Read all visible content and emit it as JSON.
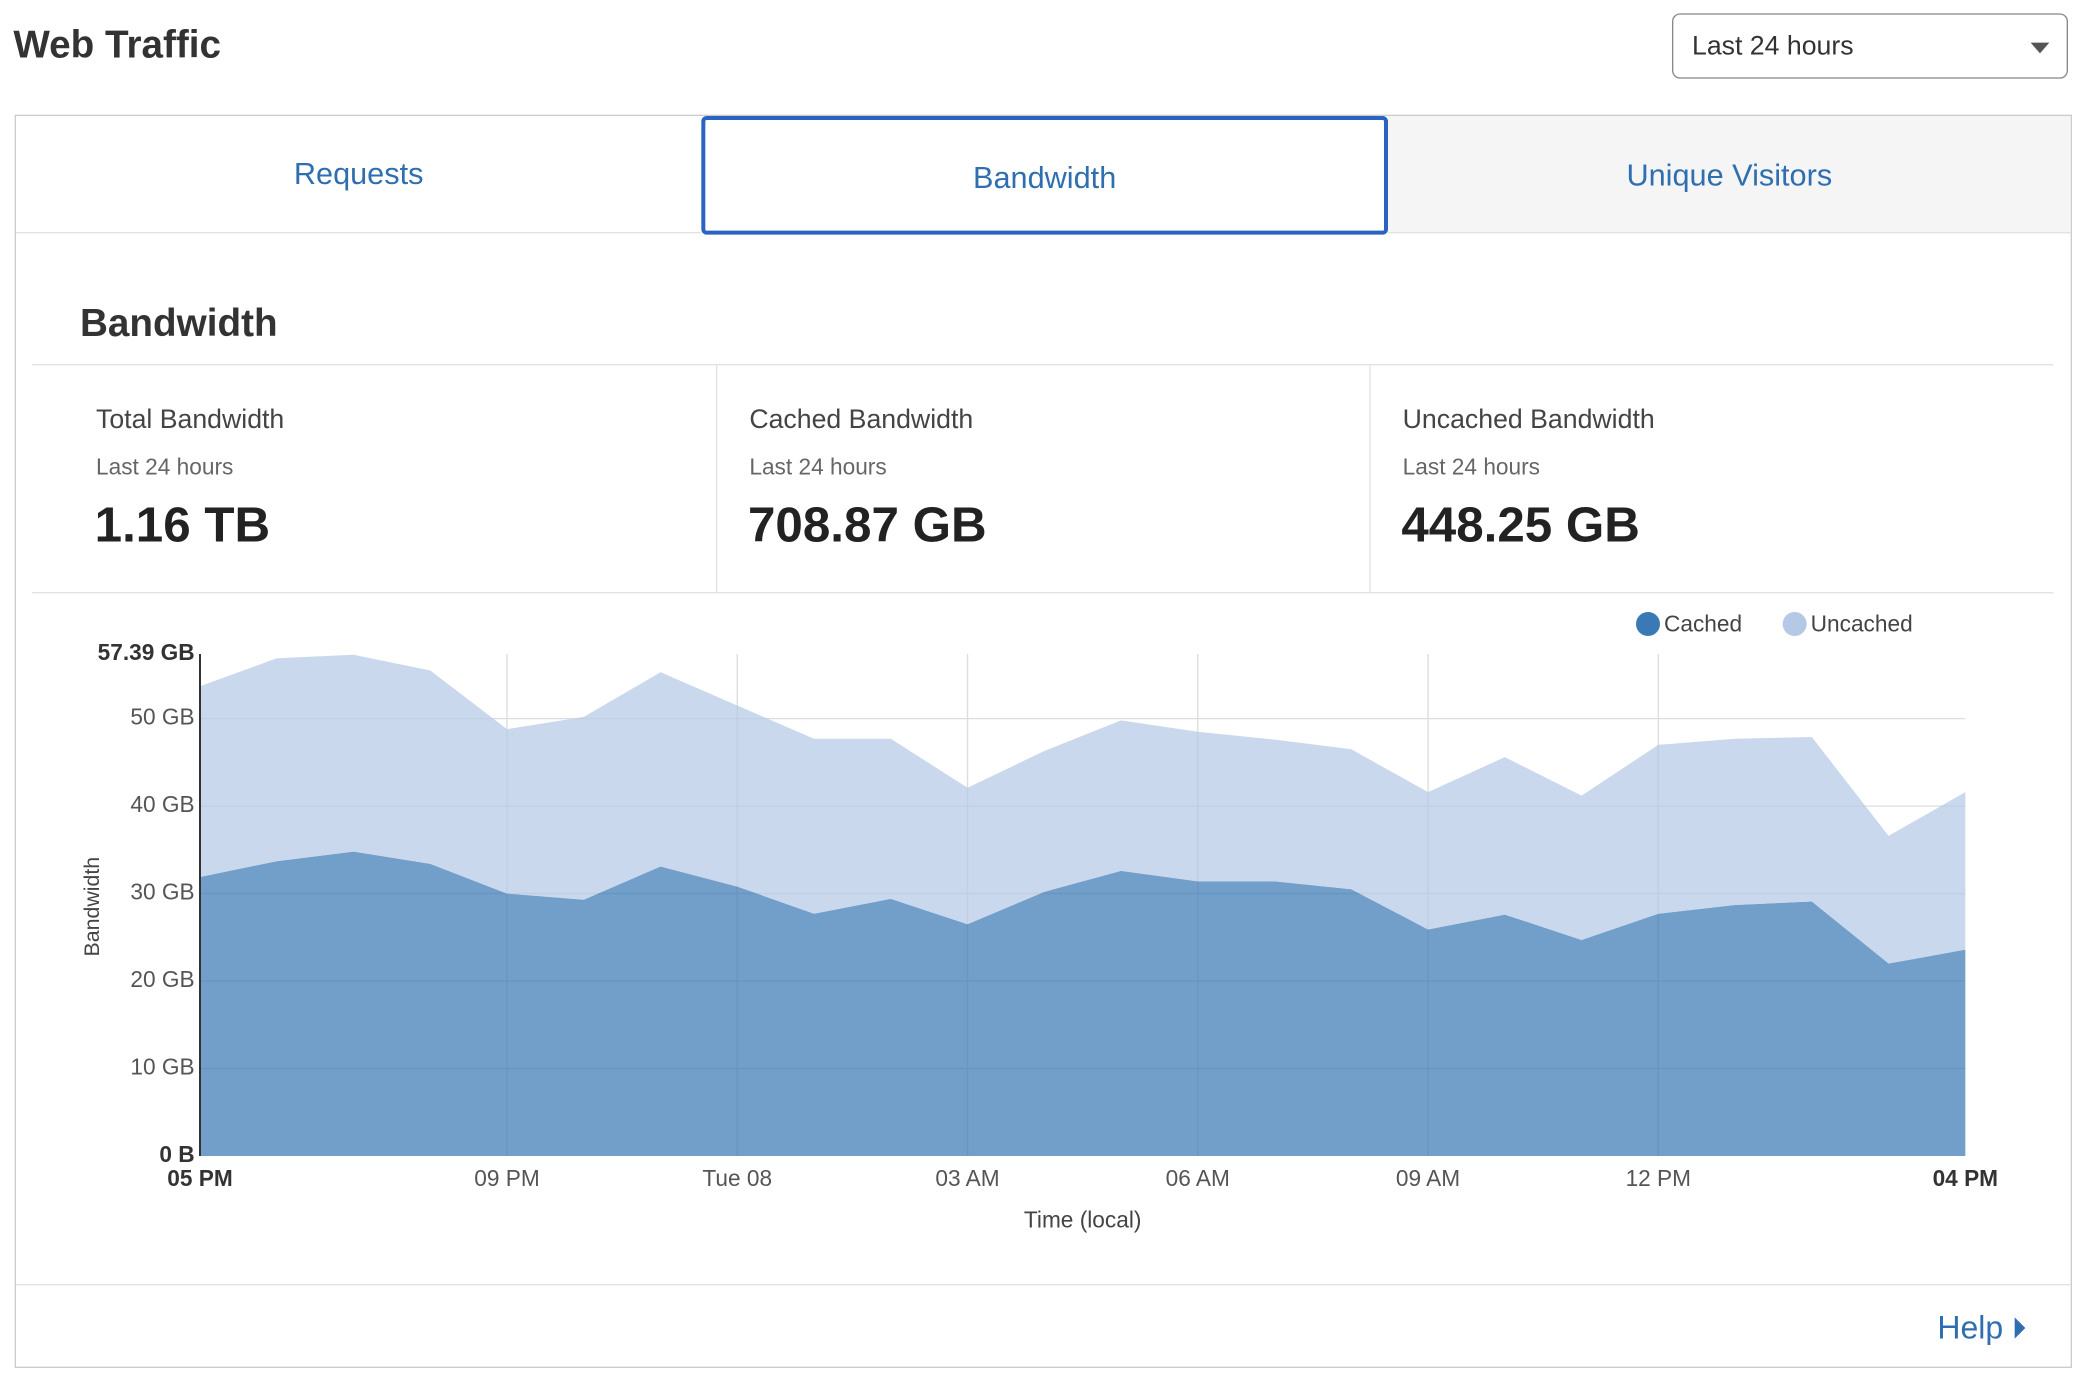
{
  "header": {
    "title": "Web Traffic",
    "range_select": "Last 24 hours"
  },
  "tabs": [
    "Requests",
    "Bandwidth",
    "Unique Visitors"
  ],
  "section_title": "Bandwidth",
  "stats": [
    {
      "label": "Total Bandwidth",
      "period": "Last 24 hours",
      "value": "1.16 TB"
    },
    {
      "label": "Cached Bandwidth",
      "period": "Last 24 hours",
      "value": "708.87 GB"
    },
    {
      "label": "Uncached Bandwidth",
      "period": "Last 24 hours",
      "value": "448.25 GB"
    }
  ],
  "help": "Help",
  "chart_data": {
    "type": "stacked-area",
    "x_label": "Time (local)",
    "y_label": "Bandwidth",
    "categories": [
      "05 PM",
      null,
      null,
      null,
      "09 PM",
      null,
      null,
      "Tue 08",
      null,
      null,
      "03 AM",
      null,
      null,
      "06 AM",
      null,
      null,
      "09 AM",
      null,
      null,
      "12 PM",
      null,
      null,
      null,
      "04 PM"
    ],
    "series": [
      {
        "name": "Cached",
        "color": "#3b78b5",
        "values": [
          31.9,
          33.7,
          34.8,
          33.4,
          30.0,
          29.3,
          33.1,
          30.8,
          27.7,
          29.4,
          26.5,
          30.2,
          32.6,
          31.4,
          31.4,
          30.5,
          25.9,
          27.6,
          24.7,
          27.7,
          28.7,
          29.1,
          22.0,
          23.6
        ]
      },
      {
        "name": "Uncached",
        "color": "#b5c9e6",
        "values": [
          21.8,
          23.2,
          22.5,
          22.1,
          18.8,
          20.9,
          22.2,
          20.7,
          20.0,
          18.3,
          15.6,
          16.1,
          17.2,
          17.1,
          16.2,
          16.0,
          15.7,
          18.0,
          16.5,
          19.3,
          19.0,
          18.8,
          14.6,
          18.0
        ]
      }
    ],
    "ylim": [
      0,
      57.39
    ],
    "yticks": [
      {
        "value": 0,
        "label": "0 B"
      },
      {
        "value": 10,
        "label": "10 GB"
      },
      {
        "value": 20,
        "label": "20 GB"
      },
      {
        "value": 30,
        "label": "30 GB"
      },
      {
        "value": 40,
        "label": "40 GB"
      },
      {
        "value": 50,
        "label": "50 GB"
      },
      {
        "value": 57.39,
        "label": "57.39 GB"
      }
    ],
    "grid": true,
    "legend": "top-right"
  }
}
